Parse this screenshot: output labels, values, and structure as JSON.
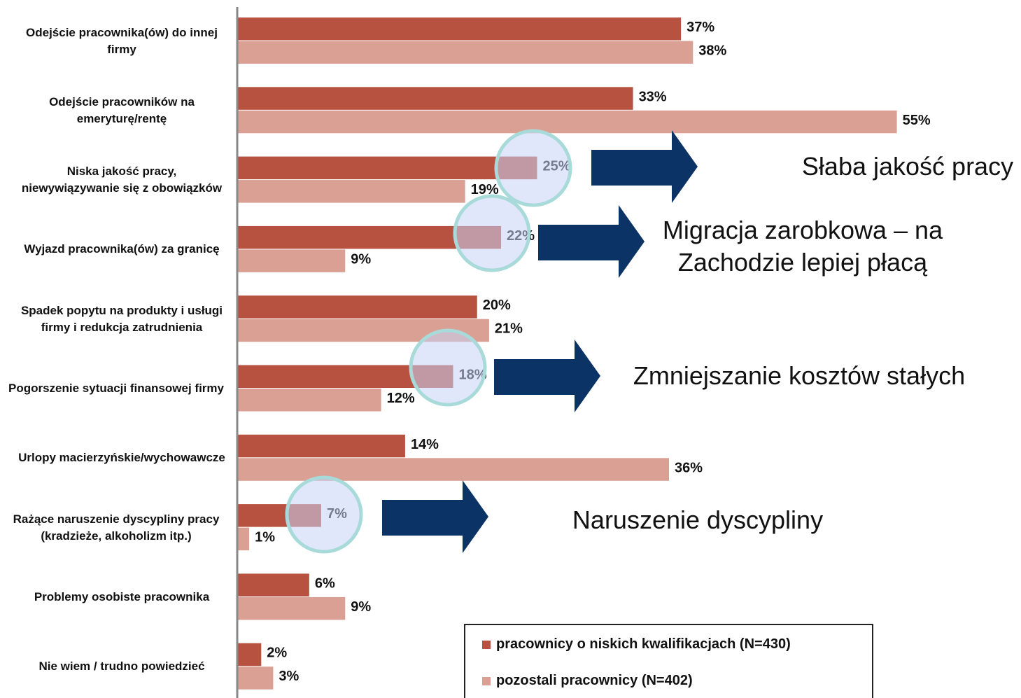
{
  "chart_data": {
    "type": "hbar",
    "categories": [
      "Odejście pracownika(ów) do innej firmy",
      "Odejście pracowników na emeryturę/rentę",
      "Niska jakość pracy, niewywiązywanie się z obowiązków",
      "Wyjazd pracownika(ów) za granicę",
      "Spadek popytu na produkty i usługi firmy i redukcja zatrudnienia",
      "Pogorszenie sytuacji finansowej firmy",
      "Urlopy macierzyńskie/wychowawcze",
      "Rażące naruszenie dyscypliny pracy (kradzieże, alkoholizm itp.)",
      "Problemy osobiste pracownika",
      "Nie wiem / trudno powiedzieć"
    ],
    "series": [
      {
        "name": "pracownicy o niskich kwalifikacjach (N=430)",
        "color": "#b85240",
        "values": [
          37,
          33,
          25,
          22,
          20,
          18,
          14,
          7,
          6,
          2
        ],
        "value_labels": [
          "37%",
          "33%",
          "25%",
          "22%",
          "20%",
          "18%",
          "14%",
          "7%",
          "6%",
          "2%"
        ]
      },
      {
        "name": "pozostali pracownicy (N=402)",
        "color": "#d9a093",
        "values": [
          38,
          55,
          19,
          9,
          21,
          12,
          36,
          1,
          9,
          3
        ],
        "value_labels": [
          "38%",
          "55%",
          "19%",
          "9%",
          "21%",
          "12%",
          "36%",
          "1%",
          "9%",
          "3%"
        ]
      }
    ],
    "xlim": [
      0,
      65
    ],
    "annotations": [
      "Słaba jakość pracy",
      "Migracja zarobkowa – na Zachodzie lepiej płacą",
      "Zmniejszanie kosztów stałych",
      "Naruszenie dyscypliny"
    ]
  }
}
